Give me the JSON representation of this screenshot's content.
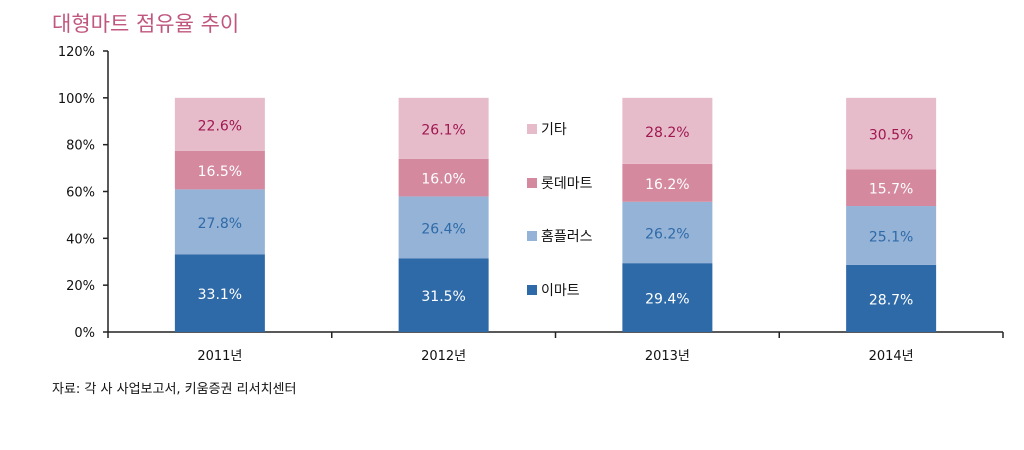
{
  "chart_data": {
    "type": "stacked-bar",
    "title": "대형마트 점유율 추이",
    "source": "자료: 각 사 사업보고서, 키움증권 리서치센터",
    "categories": [
      "2011년",
      "2012년",
      "2013년",
      "2014년"
    ],
    "ylim": [
      0,
      120
    ],
    "yticks": [
      "0%",
      "20%",
      "40%",
      "60%",
      "80%",
      "100%",
      "120%"
    ],
    "grid": false,
    "legend_position": "center (between 2012 and 2013 bars)",
    "series": [
      {
        "name": "이마트",
        "values": [
          33.1,
          31.5,
          29.4,
          28.7
        ],
        "labels": [
          "33.1%",
          "31.5%",
          "29.4%",
          "28.7%"
        ],
        "color": "#2E6AA8",
        "label_color": "#FFFFFF"
      },
      {
        "name": "홈플러스",
        "values": [
          27.8,
          26.4,
          26.2,
          25.1
        ],
        "labels": [
          "27.8%",
          "26.4%",
          "26.2%",
          "25.1%"
        ],
        "color": "#95B3D7",
        "label_color": "#2E6AA8"
      },
      {
        "name": "롯데마트",
        "values": [
          16.5,
          16.0,
          16.2,
          15.7
        ],
        "labels": [
          "16.5%",
          "16.0%",
          "16.2%",
          "15.7%"
        ],
        "color": "#D4899F",
        "label_color": "#FFFFFF"
      },
      {
        "name": "기타",
        "values": [
          22.6,
          26.1,
          28.2,
          30.5
        ],
        "labels": [
          "22.6%",
          "26.1%",
          "28.2%",
          "30.5%"
        ],
        "color": "#E6BCCB",
        "label_color": "#A0174F"
      }
    ]
  }
}
